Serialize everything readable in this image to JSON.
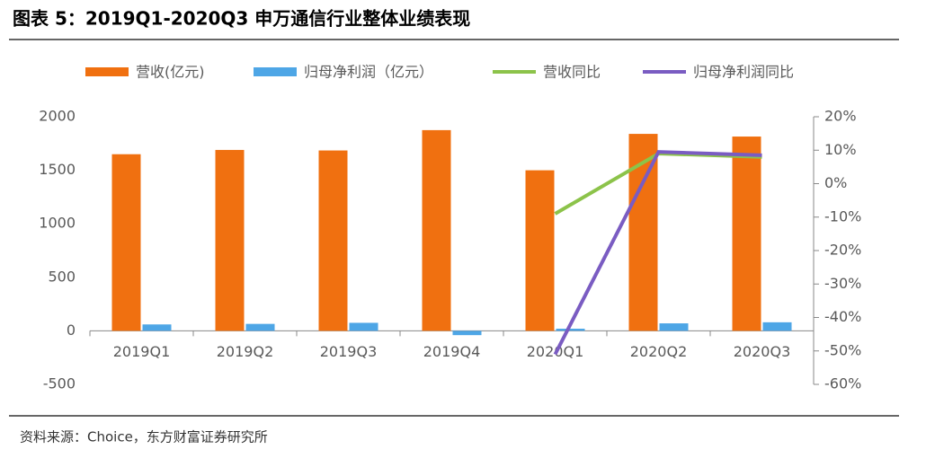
{
  "chart_data": {
    "type": "bar-line",
    "title": "图表 5：2019Q1-2020Q3 申万通信行业整体业绩表现",
    "source": "资料来源：Choice，东方财富证券研究所",
    "categories": [
      "2019Q1",
      "2019Q2",
      "2019Q3",
      "2019Q4",
      "2020Q1",
      "2020Q2",
      "2020Q3"
    ],
    "series": [
      {
        "name": "营收(亿元)",
        "color": "#f07010",
        "type": "bar",
        "values": [
          1650,
          1690,
          1685,
          1875,
          1500,
          1840,
          1815
        ]
      },
      {
        "name": "归母净利润（亿元）",
        "color": "#4ea6e6",
        "type": "bar",
        "values": [
          60,
          65,
          75,
          -40,
          20,
          70,
          80
        ]
      },
      {
        "name": "营收同比",
        "color": "#8cc34a",
        "type": "line",
        "axis": "y2",
        "values": [
          null,
          null,
          null,
          null,
          -9,
          9,
          8
        ]
      },
      {
        "name": "归母净利润同比",
        "color": "#7a5cc2",
        "type": "line",
        "axis": "y2",
        "values": [
          null,
          null,
          null,
          null,
          -51,
          9.5,
          8.5
        ]
      }
    ],
    "ylim": [
      -500,
      2000
    ],
    "yticks": [
      -500,
      0,
      500,
      1000,
      1500,
      2000
    ],
    "y2lim": [
      -60,
      20
    ],
    "y2ticks": [
      {
        "value": -60,
        "label": "-60%"
      },
      {
        "value": -50,
        "label": "-50%"
      },
      {
        "value": -40,
        "label": "-40%"
      },
      {
        "value": -30,
        "label": "-30%"
      },
      {
        "value": -20,
        "label": "-20%"
      },
      {
        "value": -10,
        "label": "-10%"
      },
      {
        "value": 0,
        "label": "0%"
      },
      {
        "value": 10,
        "label": "10%"
      },
      {
        "value": 20,
        "label": "20%"
      }
    ]
  }
}
